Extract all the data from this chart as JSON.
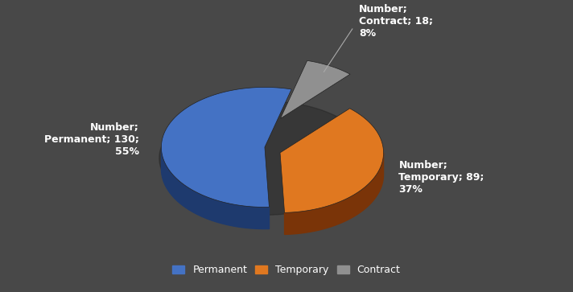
{
  "categories": [
    "Permanent",
    "Temporary",
    "Contract"
  ],
  "values": [
    130,
    89,
    18
  ],
  "percentages": [
    55,
    37,
    8
  ],
  "colors": [
    "#4472c4",
    "#e07820",
    "#909090"
  ],
  "dark_colors": [
    "#1e3a6e",
    "#7a3408",
    "#4a4a4a"
  ],
  "mid_colors": [
    "#2e5090",
    "#b05a10",
    "#606060"
  ],
  "background_color": "#484848",
  "text_color": "#ffffff",
  "legend_labels": [
    "Permanent",
    "Temporary",
    "Contract"
  ],
  "explode": [
    0.0,
    0.06,
    0.12
  ],
  "startangle": 75,
  "depth": 0.08,
  "label_fontsize": 9,
  "legend_fontsize": 9
}
